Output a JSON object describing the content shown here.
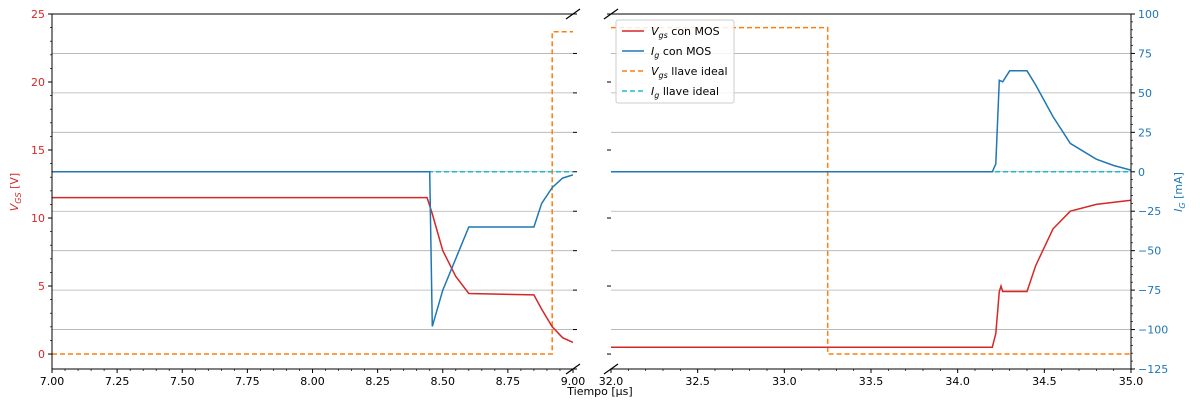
{
  "chart_data": {
    "type": "line",
    "xlabel": "Tiempo [μs]",
    "ylabel_left": "V_GS [V]",
    "ylabel_right": "I_G [mA]",
    "xlim_left": [
      7.0,
      9.0
    ],
    "xlim_right": [
      32.0,
      35.0
    ],
    "ylim_left": [
      -1.1,
      25
    ],
    "ylim_right": [
      -125,
      100
    ],
    "xticks_left": [
      "7.00",
      "7.25",
      "7.50",
      "7.75",
      "8.00",
      "8.25",
      "8.50",
      "8.75",
      "9.00"
    ],
    "xticks_right": [
      "32.0",
      "32.5",
      "33.0",
      "33.5",
      "34.0",
      "34.5",
      "35.0"
    ],
    "yticks_left": [
      "0",
      "5",
      "10",
      "15",
      "20",
      "25"
    ],
    "yticks_right": [
      "−125",
      "−100",
      "−75",
      "−50",
      "−25",
      "0",
      "25",
      "50",
      "75",
      "100"
    ],
    "grid": "horizontal (right axis)",
    "legend_position": "top-left of right panel",
    "colors": {
      "vgs_mos": "#d62728",
      "ig_mos": "#1f77b4",
      "vgs_ideal": "#ff7f0e",
      "ig_ideal": "#17becf",
      "left_axis": "#d62728",
      "right_axis": "#1f77b4"
    },
    "legend": [
      {
        "main": "V",
        "sub": "gs",
        "rest": " con MOS"
      },
      {
        "main": "I",
        "sub": "g",
        "rest": " con MOS"
      },
      {
        "main": "V",
        "sub": "gs",
        "rest": " llave ideal"
      },
      {
        "main": "I",
        "sub": "g",
        "rest": " llave ideal"
      }
    ],
    "series": [
      {
        "axis": "left",
        "left_segment": [
          [
            7.0,
            11.5
          ],
          [
            8.44,
            11.5
          ],
          [
            8.46,
            10.3
          ],
          [
            8.5,
            7.6
          ],
          [
            8.55,
            5.7
          ],
          [
            8.6,
            4.45
          ],
          [
            8.85,
            4.35
          ],
          [
            8.88,
            3.3
          ],
          [
            8.92,
            2.0
          ],
          [
            8.96,
            1.2
          ],
          [
            9.0,
            0.85
          ]
        ],
        "right_segment": [
          [
            32.0,
            0.5
          ],
          [
            34.2,
            0.5
          ],
          [
            34.22,
            1.5
          ],
          [
            34.24,
            4.6
          ],
          [
            34.25,
            5.0
          ],
          [
            34.26,
            4.6
          ],
          [
            34.4,
            4.6
          ],
          [
            34.45,
            6.5
          ],
          [
            34.55,
            9.2
          ],
          [
            34.65,
            10.5
          ],
          [
            34.8,
            11.0
          ],
          [
            35.0,
            11.3
          ]
        ]
      },
      {
        "axis": "right",
        "left_segment": [
          [
            7.0,
            0
          ],
          [
            8.45,
            0
          ],
          [
            8.46,
            -98
          ],
          [
            8.5,
            -75
          ],
          [
            8.55,
            -55
          ],
          [
            8.6,
            -35
          ],
          [
            8.85,
            -35
          ],
          [
            8.88,
            -20
          ],
          [
            8.92,
            -10
          ],
          [
            8.96,
            -4
          ],
          [
            9.0,
            -2
          ]
        ],
        "right_segment": [
          [
            32.0,
            0
          ],
          [
            34.2,
            0
          ],
          [
            34.22,
            5
          ],
          [
            34.24,
            58
          ],
          [
            34.26,
            57
          ],
          [
            34.3,
            64
          ],
          [
            34.4,
            64
          ],
          [
            34.45,
            55
          ],
          [
            34.55,
            35
          ],
          [
            34.65,
            18
          ],
          [
            34.8,
            8
          ],
          [
            34.9,
            4
          ],
          [
            35.0,
            1
          ]
        ]
      },
      {
        "axis": "left",
        "left_segment": [
          [
            7.0,
            0
          ],
          [
            8.92,
            0
          ],
          [
            8.92,
            23.7
          ],
          [
            9.0,
            23.7
          ]
        ],
        "right_segment": [
          [
            32.0,
            24.0
          ],
          [
            33.25,
            24.0
          ],
          [
            33.25,
            0
          ],
          [
            35.0,
            0
          ]
        ]
      },
      {
        "axis": "right",
        "left_segment": [
          [
            7.0,
            0
          ],
          [
            9.0,
            0
          ]
        ],
        "right_segment": [
          [
            32.0,
            0
          ],
          [
            35.0,
            0
          ]
        ]
      }
    ]
  }
}
